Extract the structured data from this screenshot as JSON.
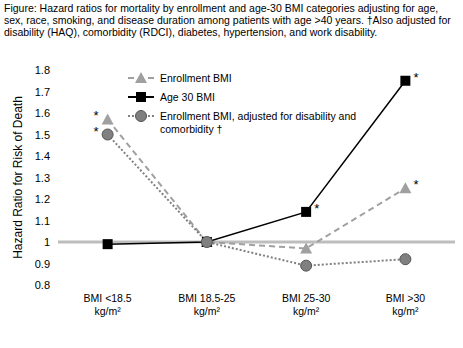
{
  "chart_data": {
    "type": "line",
    "title": "Figure: Hazard ratios for mortality by enrollment and age-30 BMI categories adjusting for age, sex, race, smoking, and disease duration among patients with age >40 years. †Also adjusted for disability (HAQ), comorbidity (RDCI), diabetes, hypertension, and work disability.",
    "y_label": "Hazard Ratio for Risk of Death",
    "categories": [
      "BMI <18.5\nkg/m²",
      "BMI 18.5-25\nkg/m²",
      "BMI 25-30\nkg/m²",
      "BMI >30\nkg/m²"
    ],
    "series": [
      {
        "name": "Enrollment BMI",
        "color": "#a0a0a0",
        "marker": "triangle",
        "line_style": "dashed",
        "values": [
          1.57,
          1.0,
          0.97,
          1.25
        ],
        "annotations": [
          "*",
          null,
          null,
          "*"
        ]
      },
      {
        "name": "Age 30 BMI",
        "color": "#000000",
        "marker": "square",
        "line_style": "solid",
        "values": [
          0.99,
          1.0,
          1.14,
          1.75
        ],
        "annotations": [
          null,
          null,
          "*",
          "*"
        ]
      },
      {
        "name": "Enrollment BMI, adjusted for disability and comorbidity †",
        "color": "#808080",
        "marker": "circle",
        "line_style": "dotted",
        "values": [
          1.5,
          1.0,
          0.89,
          0.92
        ],
        "annotations": [
          "*",
          null,
          null,
          null
        ]
      }
    ],
    "ylim": [
      0.8,
      1.8
    ],
    "yticks": [
      0.8,
      0.9,
      1,
      1.1,
      1.2,
      1.3,
      1.4,
      1.5,
      1.6,
      1.7,
      1.8
    ],
    "hline": 1,
    "grid": false,
    "legend": "top"
  }
}
